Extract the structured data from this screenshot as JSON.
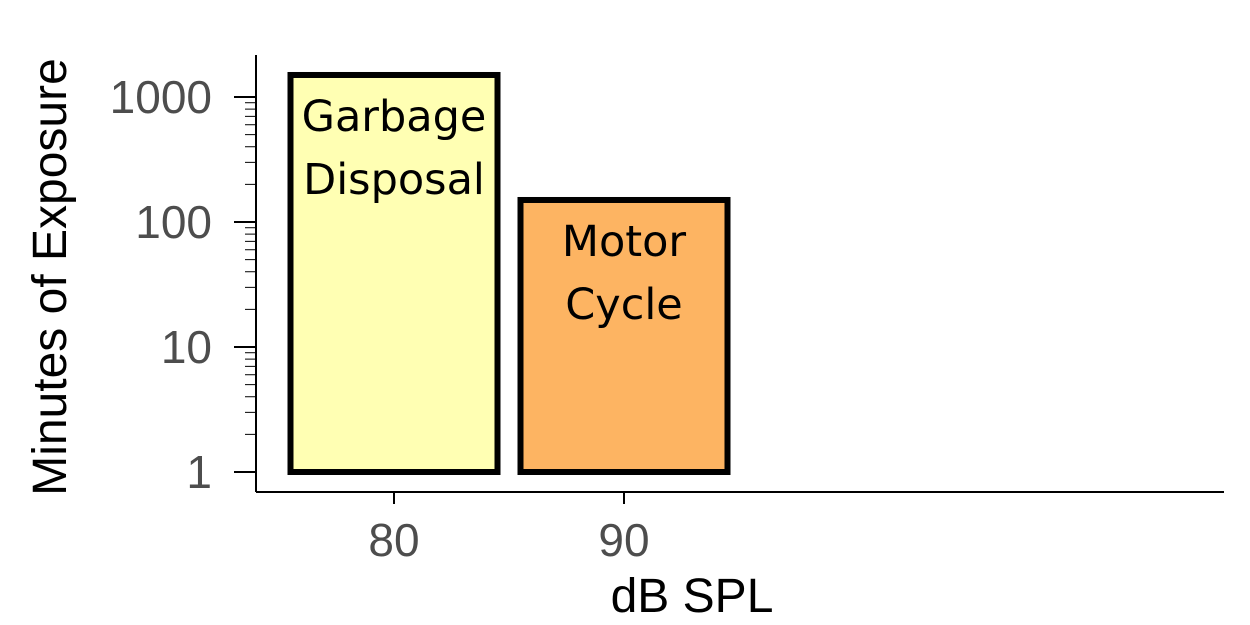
{
  "chart_data": {
    "type": "bar",
    "title": "",
    "xlabel": "dB SPL",
    "ylabel": "Minutes of Exposure",
    "y_scale": "log",
    "ylim": [
      0.7,
      2000
    ],
    "xlim": [
      74,
      116
    ],
    "grid": false,
    "legend": "none",
    "x_ticks": [
      80,
      90
    ],
    "y_ticks": [
      1,
      10,
      100,
      1000
    ],
    "y_tick_labels": [
      "1",
      "10",
      "100",
      "1000"
    ],
    "x_tick_labels": [
      "80",
      "90"
    ],
    "bars": [
      {
        "label_lines": [
          "Garbage",
          "Disposal"
        ],
        "x": 80,
        "x_range": [
          75.5,
          84.5
        ],
        "y_base": 1,
        "value": 1500,
        "color": "#ffffb3"
      },
      {
        "label_lines": [
          "Motor",
          "Cycle"
        ],
        "x": 90,
        "x_range": [
          85.5,
          94.5
        ],
        "y_base": 1,
        "value": 150,
        "color": "#fdb462"
      }
    ]
  }
}
